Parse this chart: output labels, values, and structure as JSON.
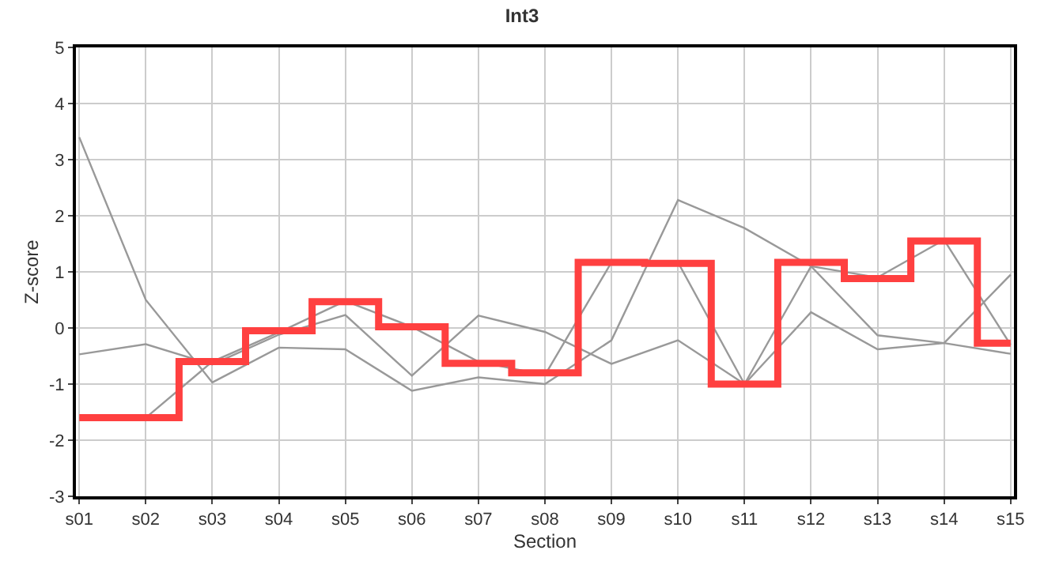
{
  "chart_data": {
    "type": "line",
    "title": "Int3",
    "xlabel": "Section",
    "ylabel": "Z-score",
    "categories": [
      "s01",
      "s02",
      "s03",
      "s04",
      "s05",
      "s06",
      "s07",
      "s08",
      "s09",
      "s10",
      "s11",
      "s12",
      "s13",
      "s14",
      "s15"
    ],
    "series": [
      {
        "color": "#999999",
        "values": [
          3.4,
          0.5,
          -0.97,
          -0.35,
          -0.38,
          -1.12,
          -0.88,
          -1.0,
          -0.22,
          2.28,
          1.78,
          1.1,
          0.9,
          1.57,
          -0.3
        ]
      },
      {
        "color": "#999999",
        "values": [
          -0.47,
          -0.29,
          -0.65,
          -0.12,
          0.23,
          -0.85,
          0.22,
          -0.07,
          -0.64,
          -0.22,
          -1.0,
          0.28,
          -0.38,
          -0.27,
          0.95
        ]
      },
      {
        "color": "#999999",
        "values": [
          -1.6,
          -1.6,
          -0.6,
          -0.08,
          0.48,
          0.02,
          -0.6,
          -0.84,
          1.17,
          1.17,
          -1.0,
          1.1,
          -0.13,
          -0.27,
          -0.46
        ]
      },
      {
        "type": "step",
        "color": "#ff4040",
        "values": [
          -1.6,
          -1.6,
          -0.6,
          -0.05,
          0.47,
          0.02,
          -0.63,
          -0.8,
          1.17,
          1.15,
          -1.0,
          1.17,
          0.88,
          1.55,
          -0.27
        ]
      }
    ],
    "ylim": [
      -3,
      5
    ],
    "yticks": [
      -3,
      -2,
      -1,
      0,
      1,
      2,
      3,
      4,
      5
    ],
    "grid": true
  }
}
